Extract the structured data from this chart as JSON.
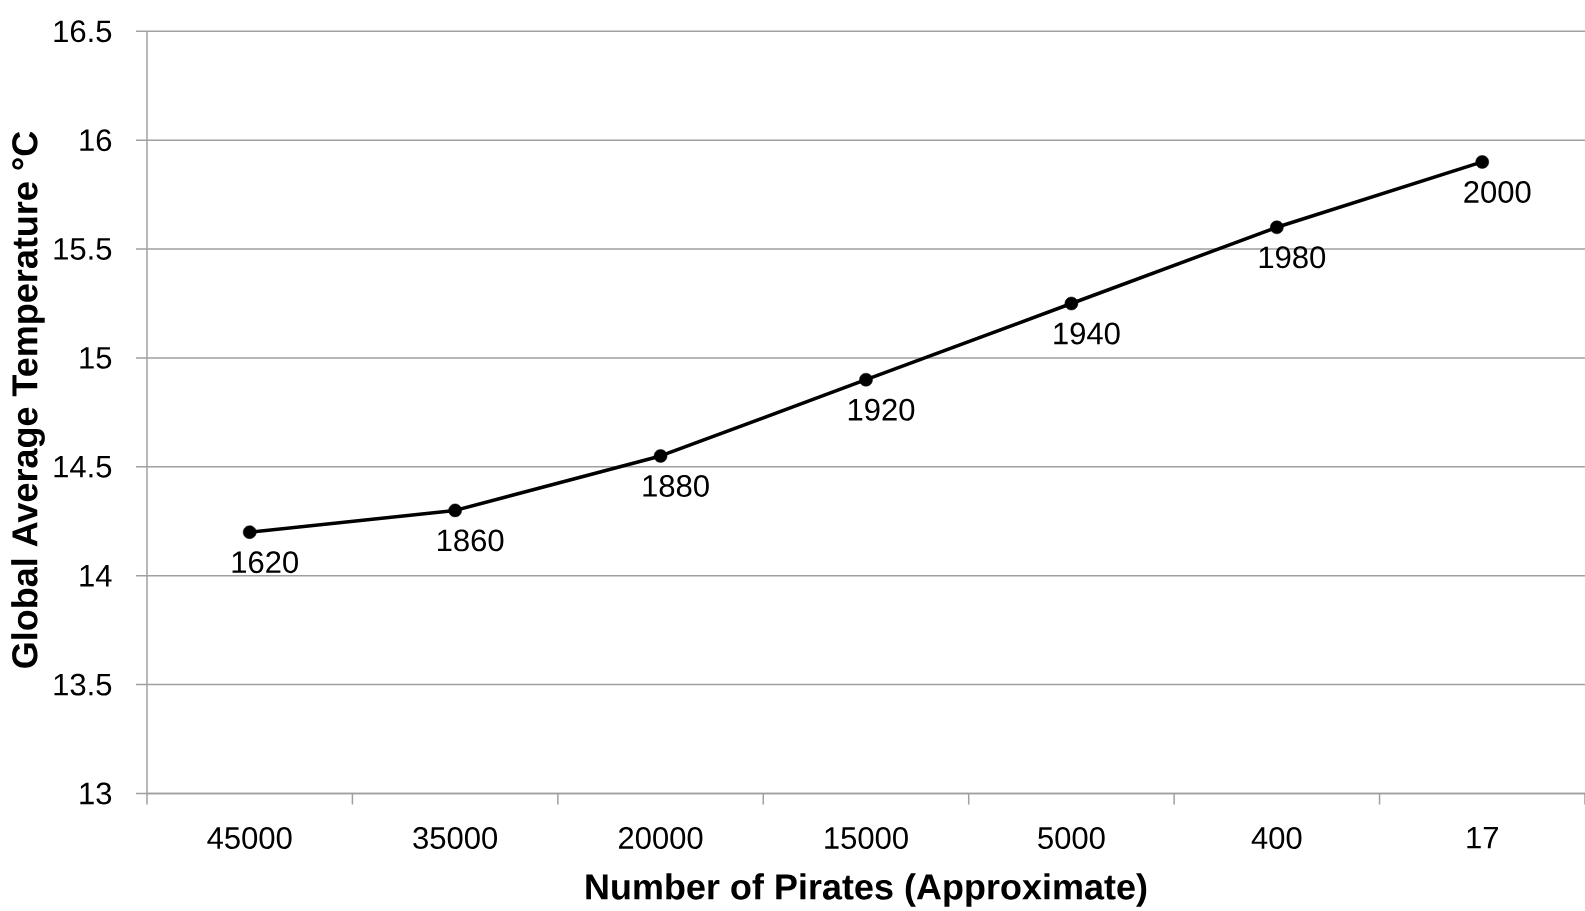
{
  "chart_data": {
    "type": "line",
    "xlabel": "Number of Pirates (Approximate)",
    "ylabel": "Global Average Temperature °C",
    "categories": [
      "45000",
      "35000",
      "20000",
      "15000",
      "5000",
      "400",
      "17"
    ],
    "values": [
      14.2,
      14.3,
      14.55,
      14.9,
      15.25,
      15.6,
      15.9
    ],
    "color": "#000000",
    "annotations": [
      {
        "text": "1620",
        "x": "45000",
        "y": 14.2
      },
      {
        "text": "1860",
        "x": "35000",
        "y": 14.3
      },
      {
        "text": "1880",
        "x": "20000",
        "y": 14.55
      },
      {
        "text": "1920",
        "x": "15000",
        "y": 14.9
      },
      {
        "text": "1940",
        "x": "5000",
        "y": 15.25
      },
      {
        "text": "1980",
        "x": "400",
        "y": 15.6
      },
      {
        "text": "2000",
        "x": "17",
        "y": 15.9
      }
    ],
    "ylim": [
      13,
      16.5
    ],
    "yticks": [
      13,
      13.5,
      14,
      14.5,
      15,
      15.5,
      16,
      16.5
    ],
    "grid": "y",
    "marker": "circle",
    "line_style": "solid"
  }
}
